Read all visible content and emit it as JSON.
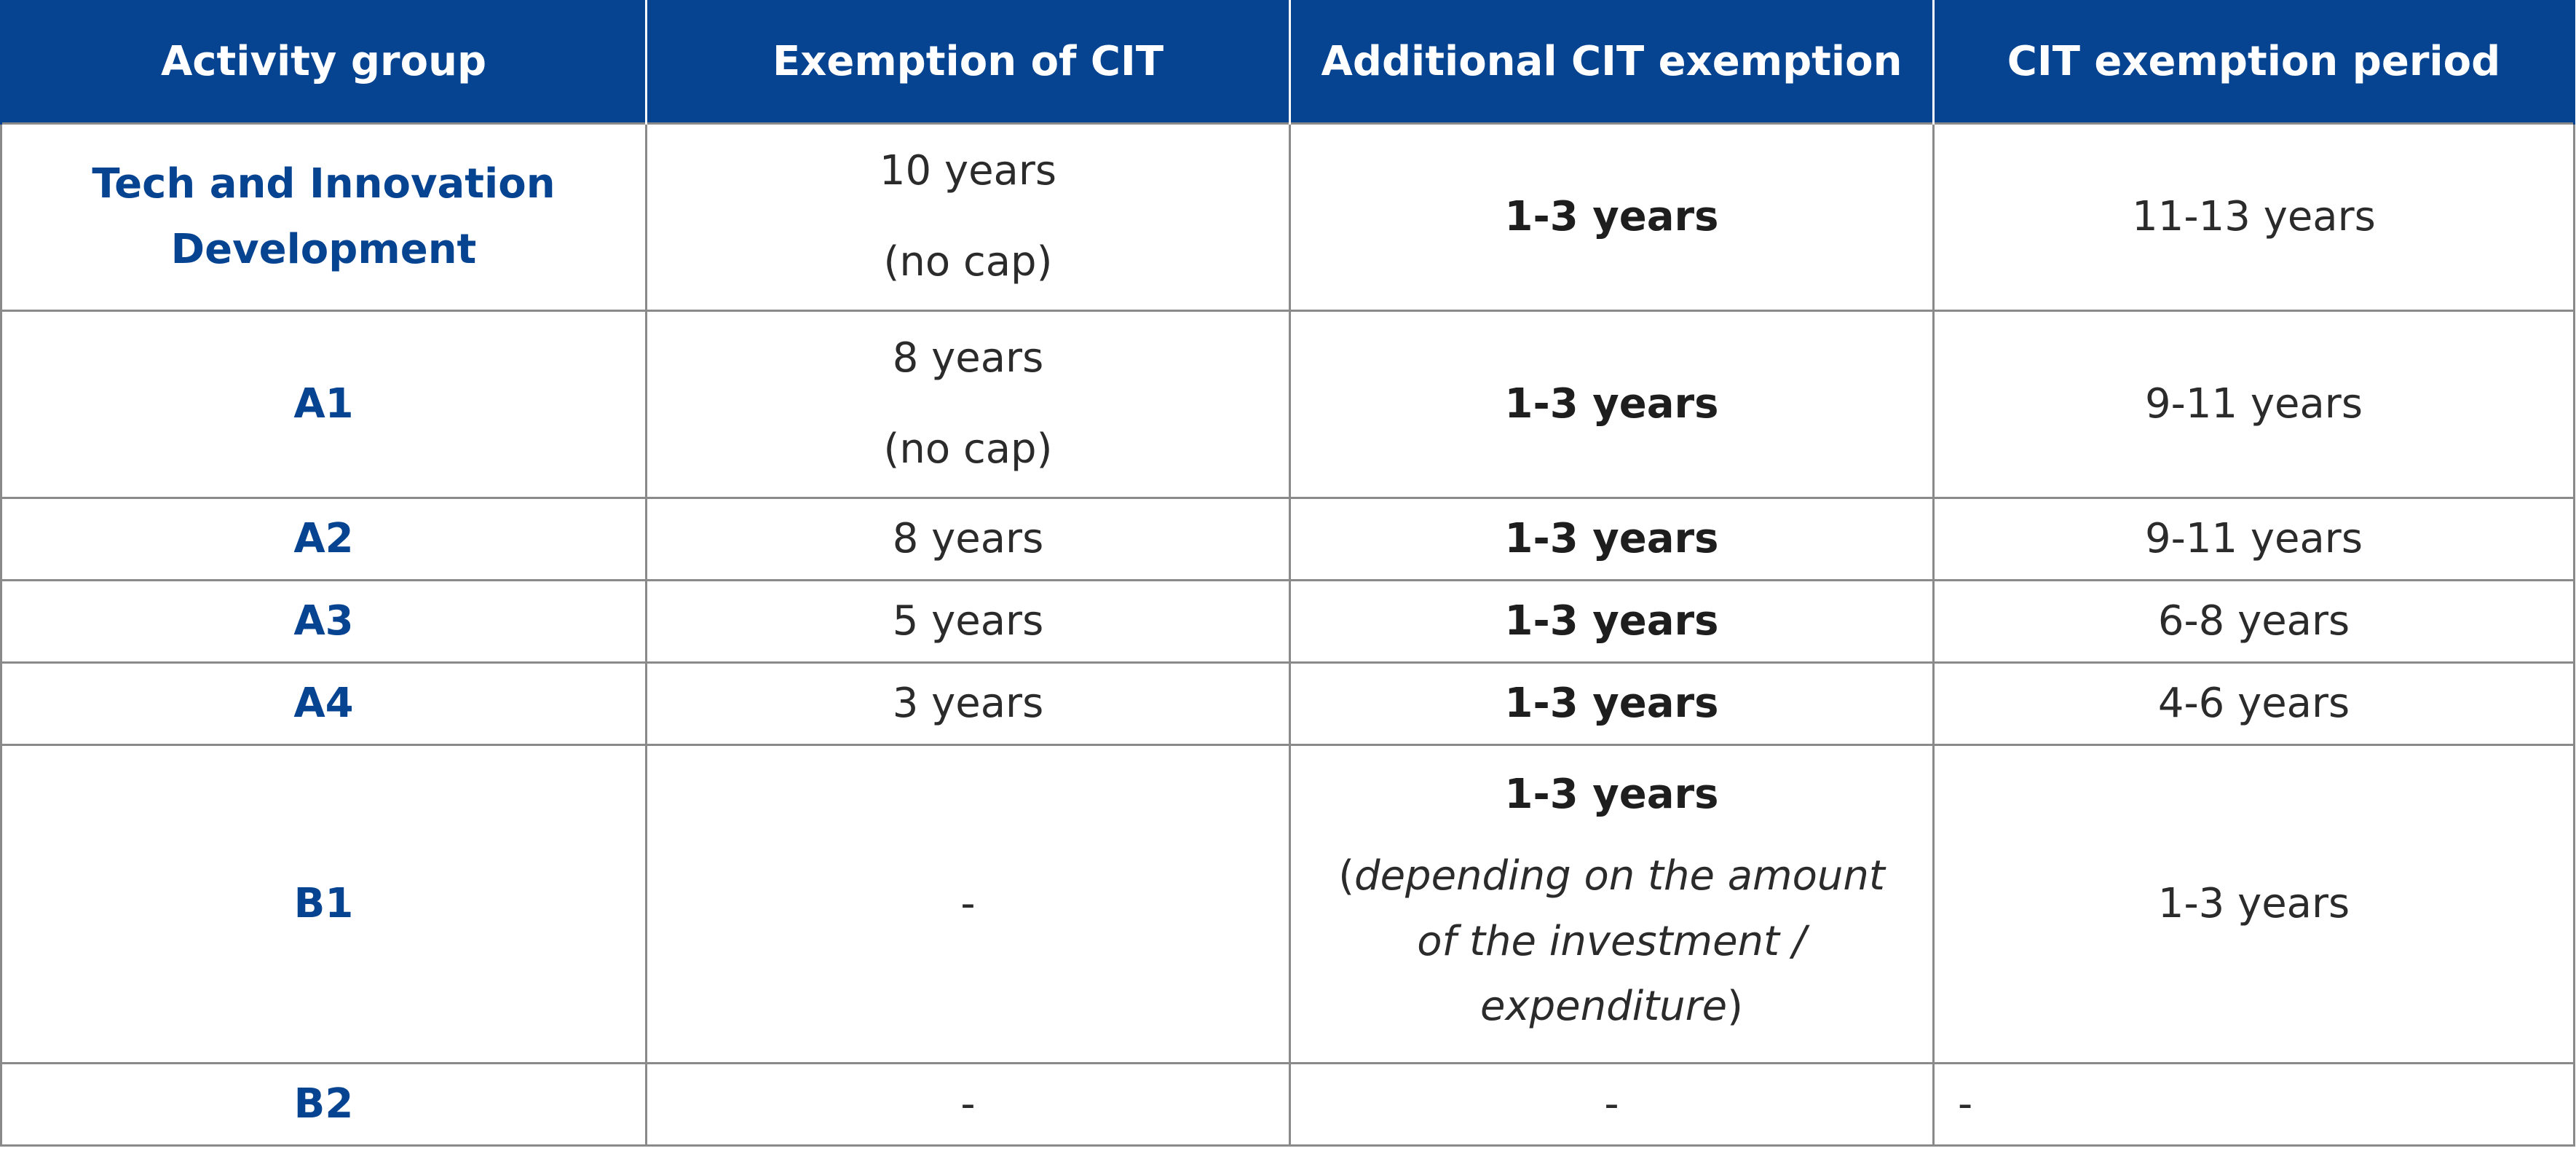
{
  "table": {
    "headers": {
      "activity_group": "Activity group",
      "exemption_of_cit": "Exemption of CIT",
      "additional_cit_exemption": "Additional CIT exemption",
      "cit_exemption_period": "CIT exemption period"
    },
    "rows": [
      {
        "group": "Tech and Innovation Development",
        "exemption": "10 years",
        "exemption_note": "(no cap)",
        "additional": "1-3 years",
        "period": "11-13 years"
      },
      {
        "group": "A1",
        "exemption": "8 years",
        "exemption_note": "(no cap)",
        "additional": "1-3 years",
        "period": "9-11 years"
      },
      {
        "group": "A2",
        "exemption": "8 years",
        "additional": "1-3 years",
        "period": "9-11 years"
      },
      {
        "group": "A3",
        "exemption": "5 years",
        "additional": "1-3 years",
        "period": "6-8 years"
      },
      {
        "group": "A4",
        "exemption": "3 years",
        "additional": "1-3 years",
        "period": "4-6 years"
      },
      {
        "group": "B1",
        "exemption": "-",
        "additional": "1-3 years",
        "additional_note_open": "(",
        "additional_note_italic": "depending on the amount of the investment / expenditure",
        "additional_note_close": ")",
        "period": "1-3 years"
      },
      {
        "group": "B2",
        "exemption": "-",
        "additional": "-",
        "period": "-"
      }
    ]
  },
  "colors": {
    "header_background": "#064491",
    "group_text": "#064491",
    "border": "#8a8a8a"
  }
}
